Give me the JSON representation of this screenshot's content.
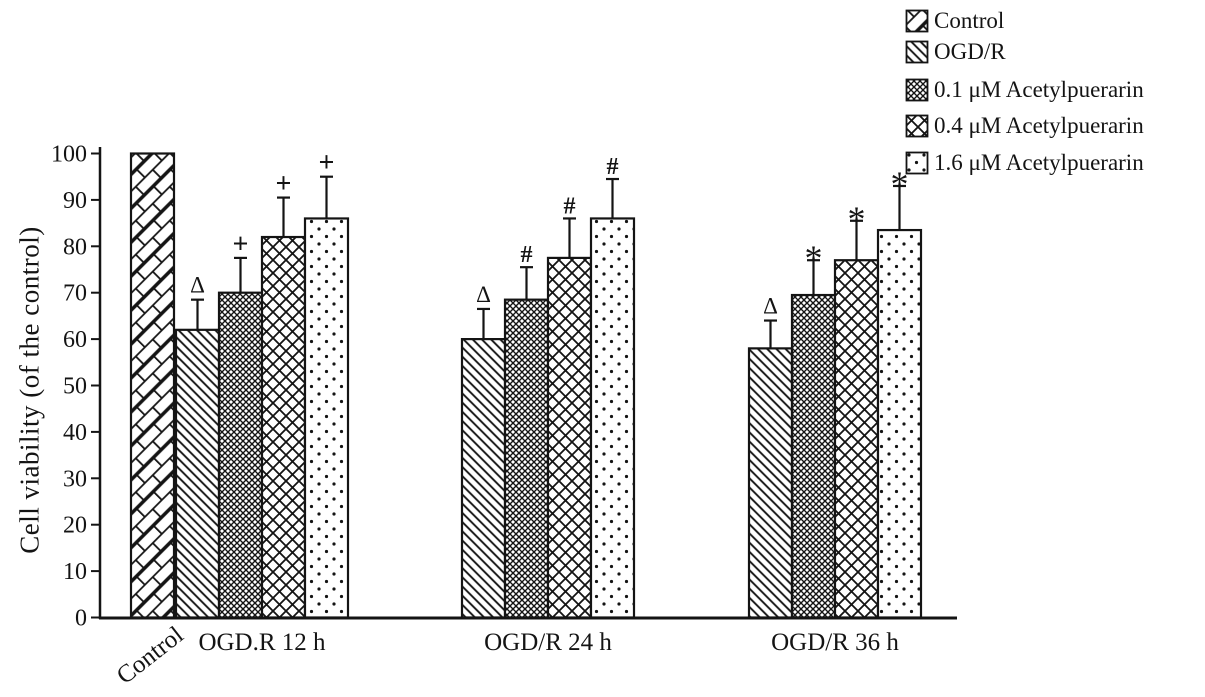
{
  "figure_type": "scientific bar chart, black hatched bars on white",
  "ink_color": "#141414",
  "background_color": "#ffffff",
  "chart_data": {
    "type": "bar",
    "title": "",
    "xlabel": "",
    "ylabel": "Cell viability (of the control)",
    "ylim": [
      0,
      100
    ],
    "ytick_step": 10,
    "ytick_labels": [
      "0",
      "10",
      "20",
      "30",
      "40",
      "50",
      "60",
      "70",
      "80",
      "90",
      "100"
    ],
    "grid": false,
    "error_bars": "upper only, cap at top",
    "legend_position": "top-right, outside plot",
    "legend": [
      {
        "label": "Control",
        "pattern": "diagonal-brick"
      },
      {
        "label": "OGD/R",
        "pattern": "diagonal-lines"
      },
      {
        "label": "0.1 μM Acetylpuerarin",
        "pattern": "dense-crosshatch"
      },
      {
        "label": "0.4 μM Acetylpuerarin",
        "pattern": "crosshatch"
      },
      {
        "label": "1.6 μM Acetylpuerarin",
        "pattern": "dots"
      }
    ],
    "groups": [
      {
        "label": "Control",
        "label_rotated": true,
        "bars": [
          {
            "series": "Control",
            "pattern": "diagonal-brick",
            "value": 100,
            "error": null,
            "symbol": null
          }
        ]
      },
      {
        "label": "OGD.R 12 h",
        "label_rotated": false,
        "bars": [
          {
            "series": "OGD/R",
            "pattern": "diagonal-lines",
            "value": 62,
            "error": 6.5,
            "symbol": "Δ"
          },
          {
            "series": "0.1 μM Acetylpuerarin",
            "pattern": "dense-crosshatch",
            "value": 70,
            "error": 7.5,
            "symbol": "+"
          },
          {
            "series": "0.4 μM Acetylpuerarin",
            "pattern": "crosshatch",
            "value": 82,
            "error": 8.5,
            "symbol": "+"
          },
          {
            "series": "1.6 μM Acetylpuerarin",
            "pattern": "dots",
            "value": 86,
            "error": 9,
            "symbol": "+"
          }
        ]
      },
      {
        "label": "OGD/R 24 h",
        "label_rotated": false,
        "bars": [
          {
            "series": "OGD/R",
            "pattern": "diagonal-lines",
            "value": 60,
            "error": 6.5,
            "symbol": "Δ"
          },
          {
            "series": "0.1 μM Acetylpuerarin",
            "pattern": "dense-crosshatch",
            "value": 68.5,
            "error": 7,
            "symbol": "#"
          },
          {
            "series": "0.4 μM Acetylpuerarin",
            "pattern": "crosshatch",
            "value": 77.5,
            "error": 8.5,
            "symbol": "#"
          },
          {
            "series": "1.6 μM Acetylpuerarin",
            "pattern": "dots",
            "value": 86,
            "error": 8.5,
            "symbol": "#"
          }
        ]
      },
      {
        "label": "OGD/R 36 h",
        "label_rotated": false,
        "bars": [
          {
            "series": "OGD/R",
            "pattern": "diagonal-lines",
            "value": 58,
            "error": 6,
            "symbol": "Δ"
          },
          {
            "series": "0.1 μM Acetylpuerarin",
            "pattern": "dense-crosshatch",
            "value": 69.5,
            "error": 7.5,
            "symbol": "*"
          },
          {
            "series": "0.4 μM Acetylpuerarin",
            "pattern": "crosshatch",
            "value": 77,
            "error": 8.5,
            "symbol": "*"
          },
          {
            "series": "1.6 μM Acetylpuerarin",
            "pattern": "dots",
            "value": 83.5,
            "error": 9.5,
            "symbol": "*"
          }
        ]
      }
    ]
  }
}
